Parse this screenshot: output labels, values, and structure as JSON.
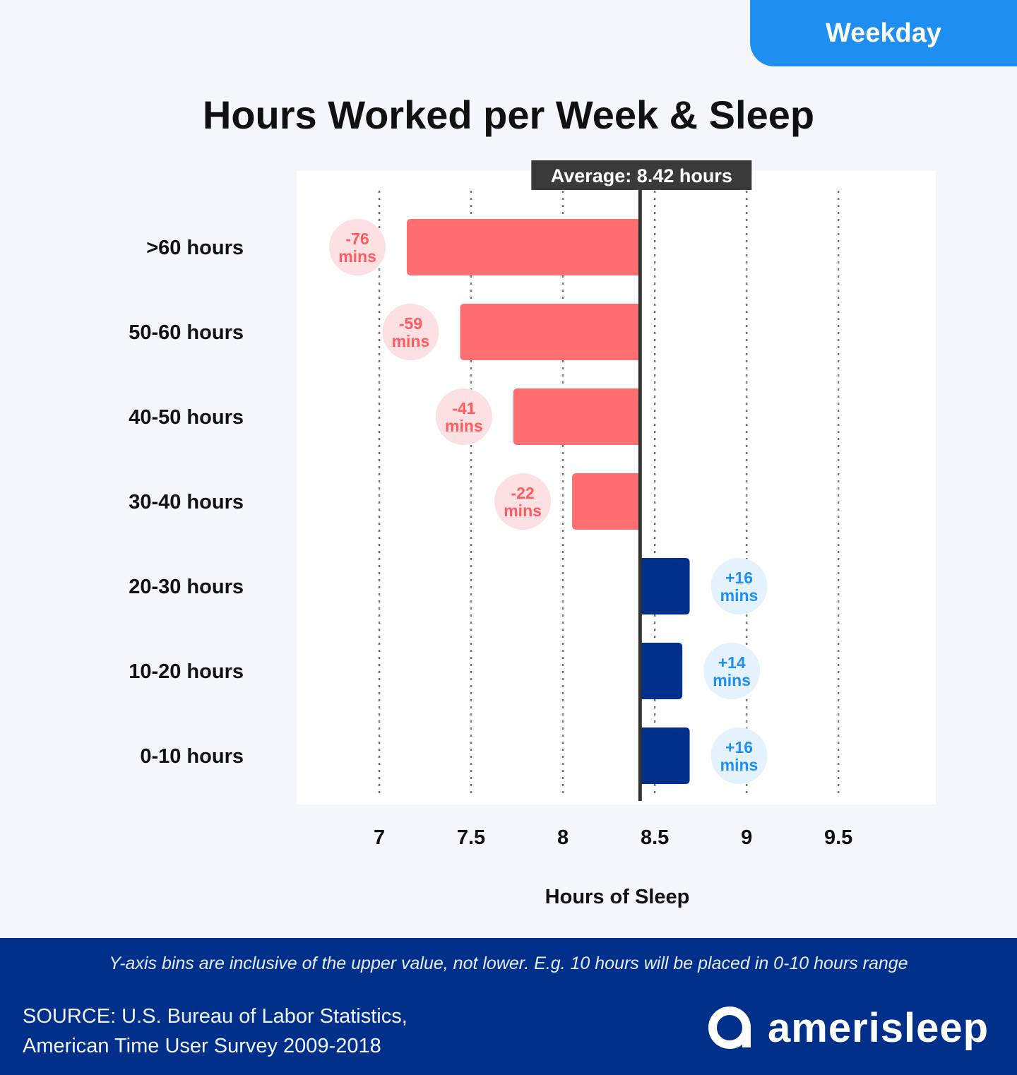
{
  "tag": "Weekday",
  "title": "Hours Worked per Week & Sleep",
  "chart_data": {
    "type": "bar",
    "orientation": "horizontal",
    "xlabel": "Hours of Sleep",
    "xlim": [
      6.55,
      10.03
    ],
    "x_ticks": [
      "7",
      "7.5",
      "8",
      "8.5",
      "9",
      "9.5"
    ],
    "x_tick_values": [
      7,
      7.5,
      8,
      8.5,
      9,
      9.5
    ],
    "grid": "vertical dotted",
    "average": {
      "value": 8.42,
      "label": "Average: 8.42 hours"
    },
    "categories": [
      ">60 hours",
      "50-60 hours",
      "40-50 hours",
      "30-40 hours",
      "20-30 hours",
      "10-20 hours",
      "0-10 hours"
    ],
    "values": [
      7.15,
      7.44,
      7.73,
      8.05,
      8.69,
      8.65,
      8.69
    ],
    "diff_labels": [
      {
        "value": "-76",
        "unit": "mins"
      },
      {
        "value": "-59",
        "unit": "mins"
      },
      {
        "value": "-41",
        "unit": "mins"
      },
      {
        "value": "-22",
        "unit": "mins"
      },
      {
        "value": "+16",
        "unit": "mins"
      },
      {
        "value": "+14",
        "unit": "mins"
      },
      {
        "value": "+16",
        "unit": "mins"
      }
    ],
    "colors": {
      "below": "#ff6e70",
      "below_badge_bg": "#fde0e1",
      "below_badge_text": "#ff5b60",
      "above": "#012f8c",
      "above_badge_bg": "#e3f2fd",
      "above_badge_text": "#1f8ef1",
      "avg_line": "#333333"
    }
  },
  "footer": {
    "note": "Y-axis bins are inclusive of the upper value, not lower. E.g. 10 hours will be placed in 0-10 hours range",
    "source_line1": "SOURCE: U.S. Bureau of Labor Statistics,",
    "source_line2": "American Time User Survey 2009-2018",
    "brand": "amerisleep"
  }
}
